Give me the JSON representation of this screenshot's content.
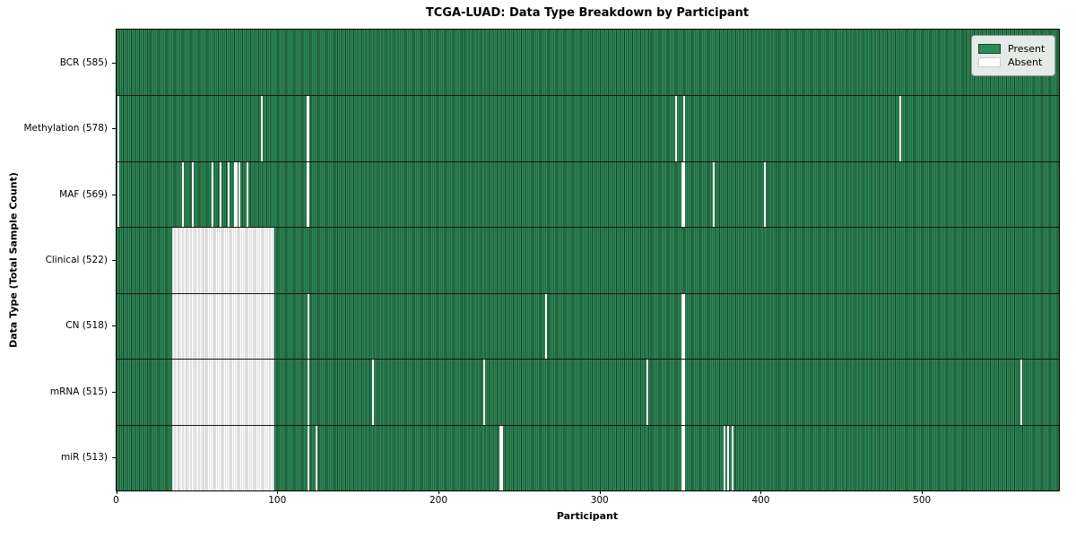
{
  "chart_data": {
    "type": "heatmap",
    "title": "TCGA-LUAD: Data Type Breakdown by Participant",
    "xlabel": "Participant",
    "ylabel": "Data Type (Total Sample Count)",
    "n_participants": 585,
    "x_ticks": [
      0,
      100,
      200,
      300,
      400,
      500
    ],
    "legend": [
      {
        "label": "Present",
        "color": "#2e8b57"
      },
      {
        "label": "Absent",
        "color": "#ffffff"
      }
    ],
    "rows": [
      {
        "label": "BCR (585)",
        "present_count": 585,
        "absent": []
      },
      {
        "label": "Methylation (578)",
        "present_count": 578,
        "absent": [
          1,
          90,
          118,
          119,
          347,
          352,
          486
        ]
      },
      {
        "label": "MAF (569)",
        "present_count": 569,
        "absent": [
          1,
          41,
          47,
          59,
          64,
          69,
          73,
          74,
          76,
          81,
          118,
          119,
          351,
          352,
          370,
          402
        ]
      },
      {
        "label": "Clinical (522)",
        "present_count": 522,
        "absent": [
          [
            35,
            97
          ]
        ]
      },
      {
        "label": "CN (518)",
        "present_count": 518,
        "absent": [
          [
            35,
            97
          ],
          119,
          266,
          351,
          352
        ]
      },
      {
        "label": "mRNA (515)",
        "present_count": 515,
        "absent": [
          [
            35,
            97
          ],
          119,
          159,
          228,
          329,
          351,
          352,
          561
        ]
      },
      {
        "label": "miR (513)",
        "present_count": 513,
        "absent": [
          [
            35,
            97
          ],
          119,
          124,
          238,
          239,
          351,
          352,
          377,
          379,
          382
        ]
      }
    ],
    "colors": {
      "present": "#2e8b57",
      "present_edge": "#17432b",
      "absent": "#ffffff",
      "absent_edge": "#bcbcbc",
      "axis": "#000000",
      "legend_bg": "#eef1ee",
      "legend_border": "#999999"
    }
  }
}
